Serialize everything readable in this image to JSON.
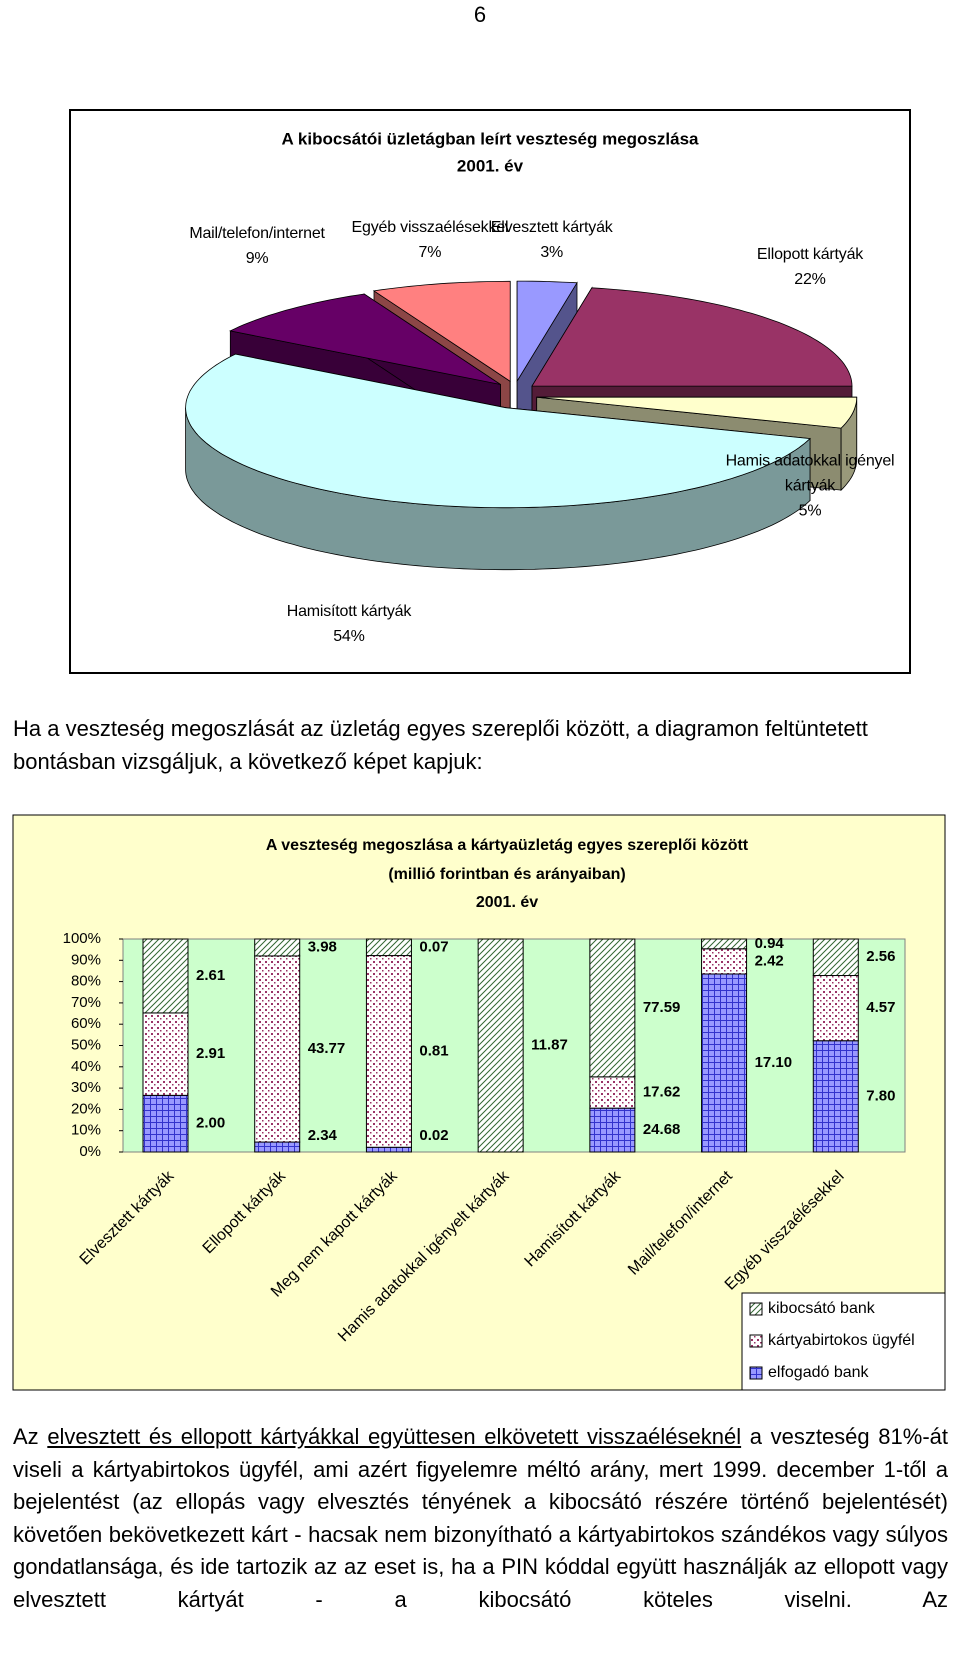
{
  "page_number": "6",
  "chart_data": [
    {
      "type": "pie",
      "title": "A kibocsátói üzletágban leírt veszteség megoszlása",
      "subtitle": "2001. év",
      "categories": [
        "Elvesztett kártyák",
        "Ellopott kártyák",
        "Hamis adatokkal igényel kártyák",
        "Hamisított kártyák",
        "Mail/telefon/internet",
        "Egyéb visszaélésekkel"
      ],
      "values": [
        3,
        22,
        5,
        54,
        9,
        7
      ],
      "value_labels": [
        "3%",
        "22%",
        "5%",
        "54%",
        "9%",
        "7%"
      ],
      "colors": [
        "#9999ff",
        "#993366",
        "#ffffcc",
        "#ccffff",
        "#660066",
        "#ff8080"
      ]
    },
    {
      "type": "bar",
      "stacking": "percent",
      "title": [
        "A veszteség megoszlása a kártyaüzletág egyes szereplői között",
        "(millió forintban és arányaiban)",
        "2001. év"
      ],
      "categories": [
        "Elvesztett kártyák",
        "Ellopott kártyák",
        "Meg nem kapott kártyák",
        "Hamis adatokkal igényelt kártyák",
        "Hamisított kártyák",
        "Mail/telefon/internet",
        "Egyéb visszaélésekkel"
      ],
      "series": [
        {
          "name": "elfogadó bank",
          "color": "#3333cc",
          "values": [
            2.0,
            2.34,
            0.02,
            null,
            24.68,
            17.1,
            7.8
          ],
          "value_labels": [
            "2.00",
            "2.34",
            "0.02",
            null,
            "24.68",
            "17.10",
            "7.80"
          ]
        },
        {
          "name": "kártyabirtokos ügyfél",
          "color": "#993366",
          "values": [
            2.91,
            43.77,
            0.81,
            null,
            17.62,
            2.42,
            4.57
          ],
          "value_labels": [
            "2.91",
            "43.77",
            "0.81",
            null,
            "17.62",
            "2.42",
            "4.57"
          ]
        },
        {
          "name": "kibocsátó bank",
          "color": "#336633",
          "values": [
            2.61,
            3.98,
            0.07,
            11.87,
            77.59,
            0.94,
            2.56
          ],
          "value_labels": [
            "2.61",
            "3.98",
            "0.07",
            "11.87",
            "77.59",
            "0.94",
            "2.56"
          ]
        }
      ],
      "ylim": [
        0,
        100
      ],
      "yticks": [
        {
          "value": 0,
          "label": "0%"
        },
        {
          "value": 10,
          "label": "10%"
        },
        {
          "value": 20,
          "label": "20%"
        },
        {
          "value": 30,
          "label": "30%"
        },
        {
          "value": 40,
          "label": "40%"
        },
        {
          "value": 50,
          "label": "50%"
        },
        {
          "value": 60,
          "label": "60%"
        },
        {
          "value": 70,
          "label": "70%"
        },
        {
          "value": 80,
          "label": "80%"
        },
        {
          "value": 90,
          "label": "90%"
        },
        {
          "value": 100,
          "label": "100%"
        }
      ],
      "legend": "bottom-right"
    }
  ],
  "paragraphs": [
    "Ha a veszteség megoszlását az üzletág egyes szereplői között, a diagramon feltüntetett bontásban vizsgáljuk, a következő képet kapjuk:",
    {
      "before": "Az ",
      "underlined": "elvesztett és ellopott kártyákkal együttesen elkövetett visszaéléseknél",
      "after": " a veszteség 81%-át viseli a kártyabirtokos ügyfél, ami azért figyelemre méltó arány, mert 1999. december 1-től a bejelentést (az ellopás vagy elvesztés tényének a kibocsátó részére történő bejelentését) követően bekövetkezett kárt - hacsak nem bizonyítható a kártyabirtokos szándékos vagy súlyos gondatlansága, és ide tartozik az az eset is, ha a PIN kóddal együtt használják az ellopott vagy elvesztett kártyát - a kibocsátó köteles viselni. Az"
    }
  ]
}
